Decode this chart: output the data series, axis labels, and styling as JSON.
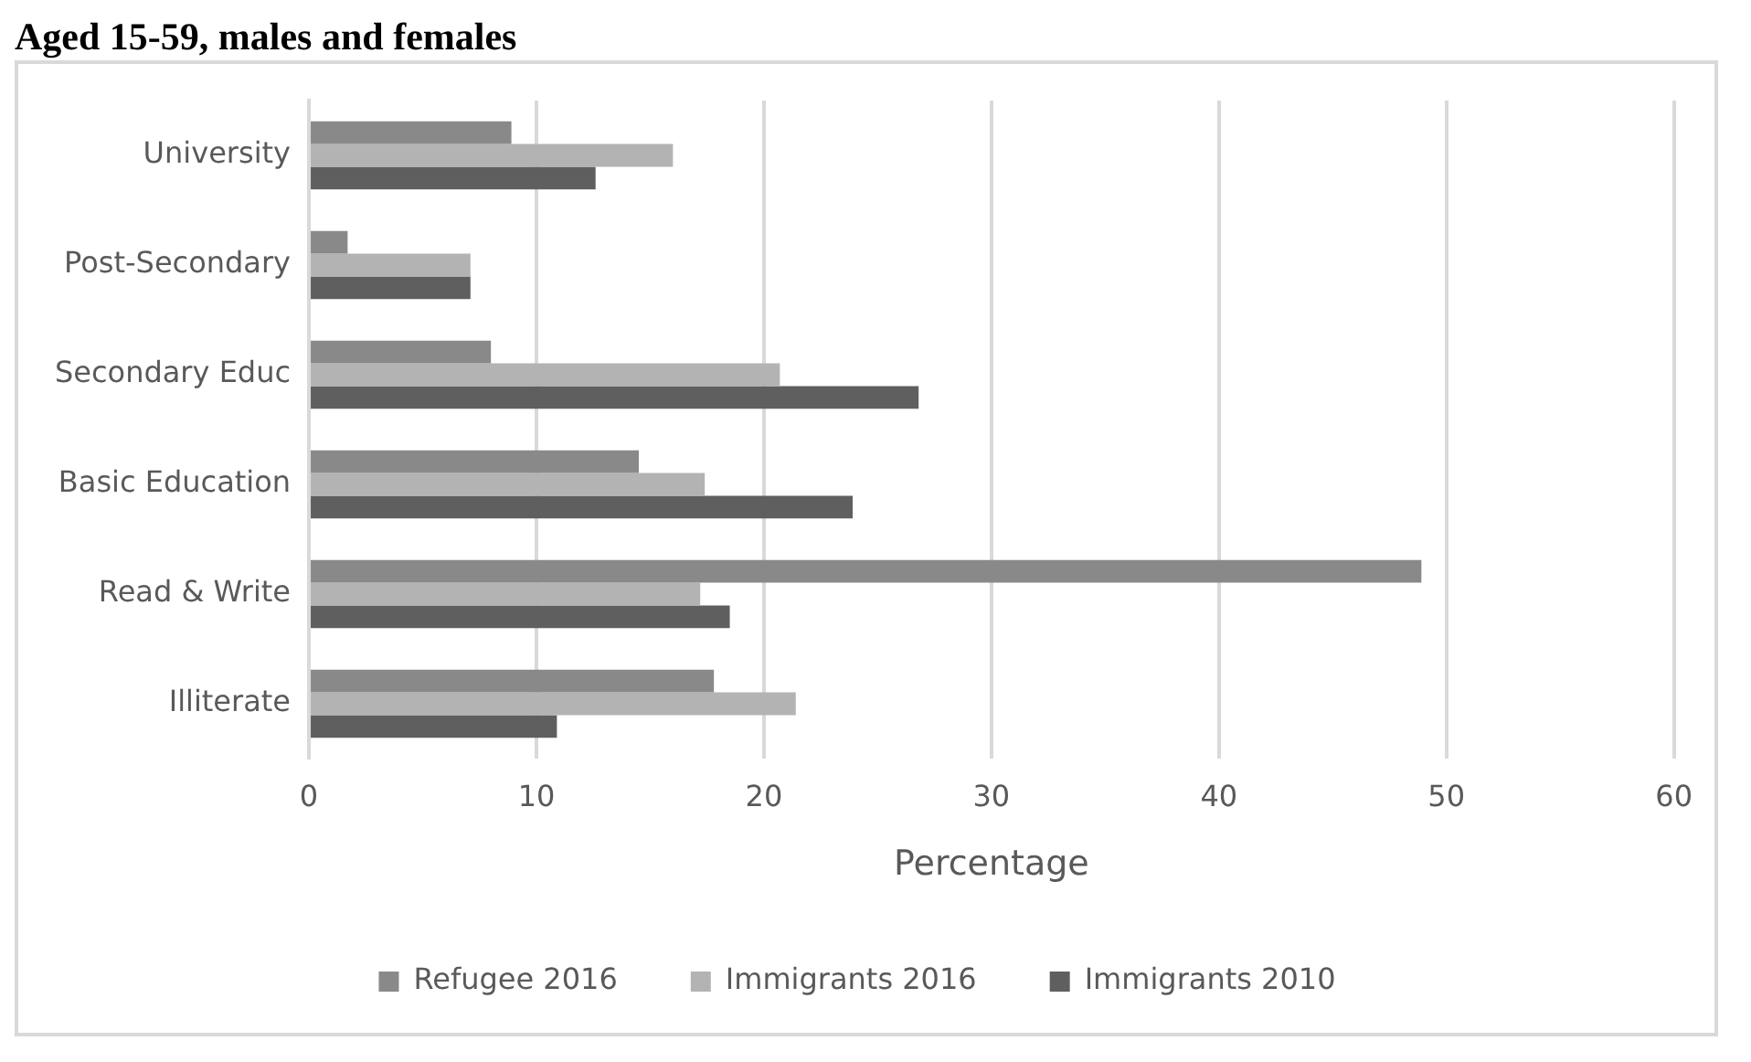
{
  "chart_data": {
    "type": "bar",
    "orientation": "horizontal",
    "title": "Aged 15-59, males and females",
    "xlabel": "Percentage",
    "categories": [
      "University",
      "Post-Secondary",
      "Secondary Educ",
      "Basic Education",
      "Read & Write",
      "Illiterate"
    ],
    "series": [
      {
        "name": "Refugee 2016",
        "color": "#898989",
        "values": [
          8.9,
          1.7,
          8.0,
          14.5,
          48.9,
          17.8
        ]
      },
      {
        "name": "Immigrants 2016",
        "color": "#b3b3b3",
        "values": [
          16.0,
          7.1,
          20.7,
          17.4,
          17.2,
          21.4
        ]
      },
      {
        "name": "Immigrants 2010",
        "color": "#5f5f5f",
        "values": [
          12.6,
          7.1,
          26.8,
          23.9,
          18.5,
          10.9
        ]
      }
    ],
    "xlim": [
      0,
      60
    ],
    "xticks": [
      0,
      10,
      20,
      30,
      40,
      50,
      60
    ],
    "grid": "x",
    "legend": "bottom"
  }
}
